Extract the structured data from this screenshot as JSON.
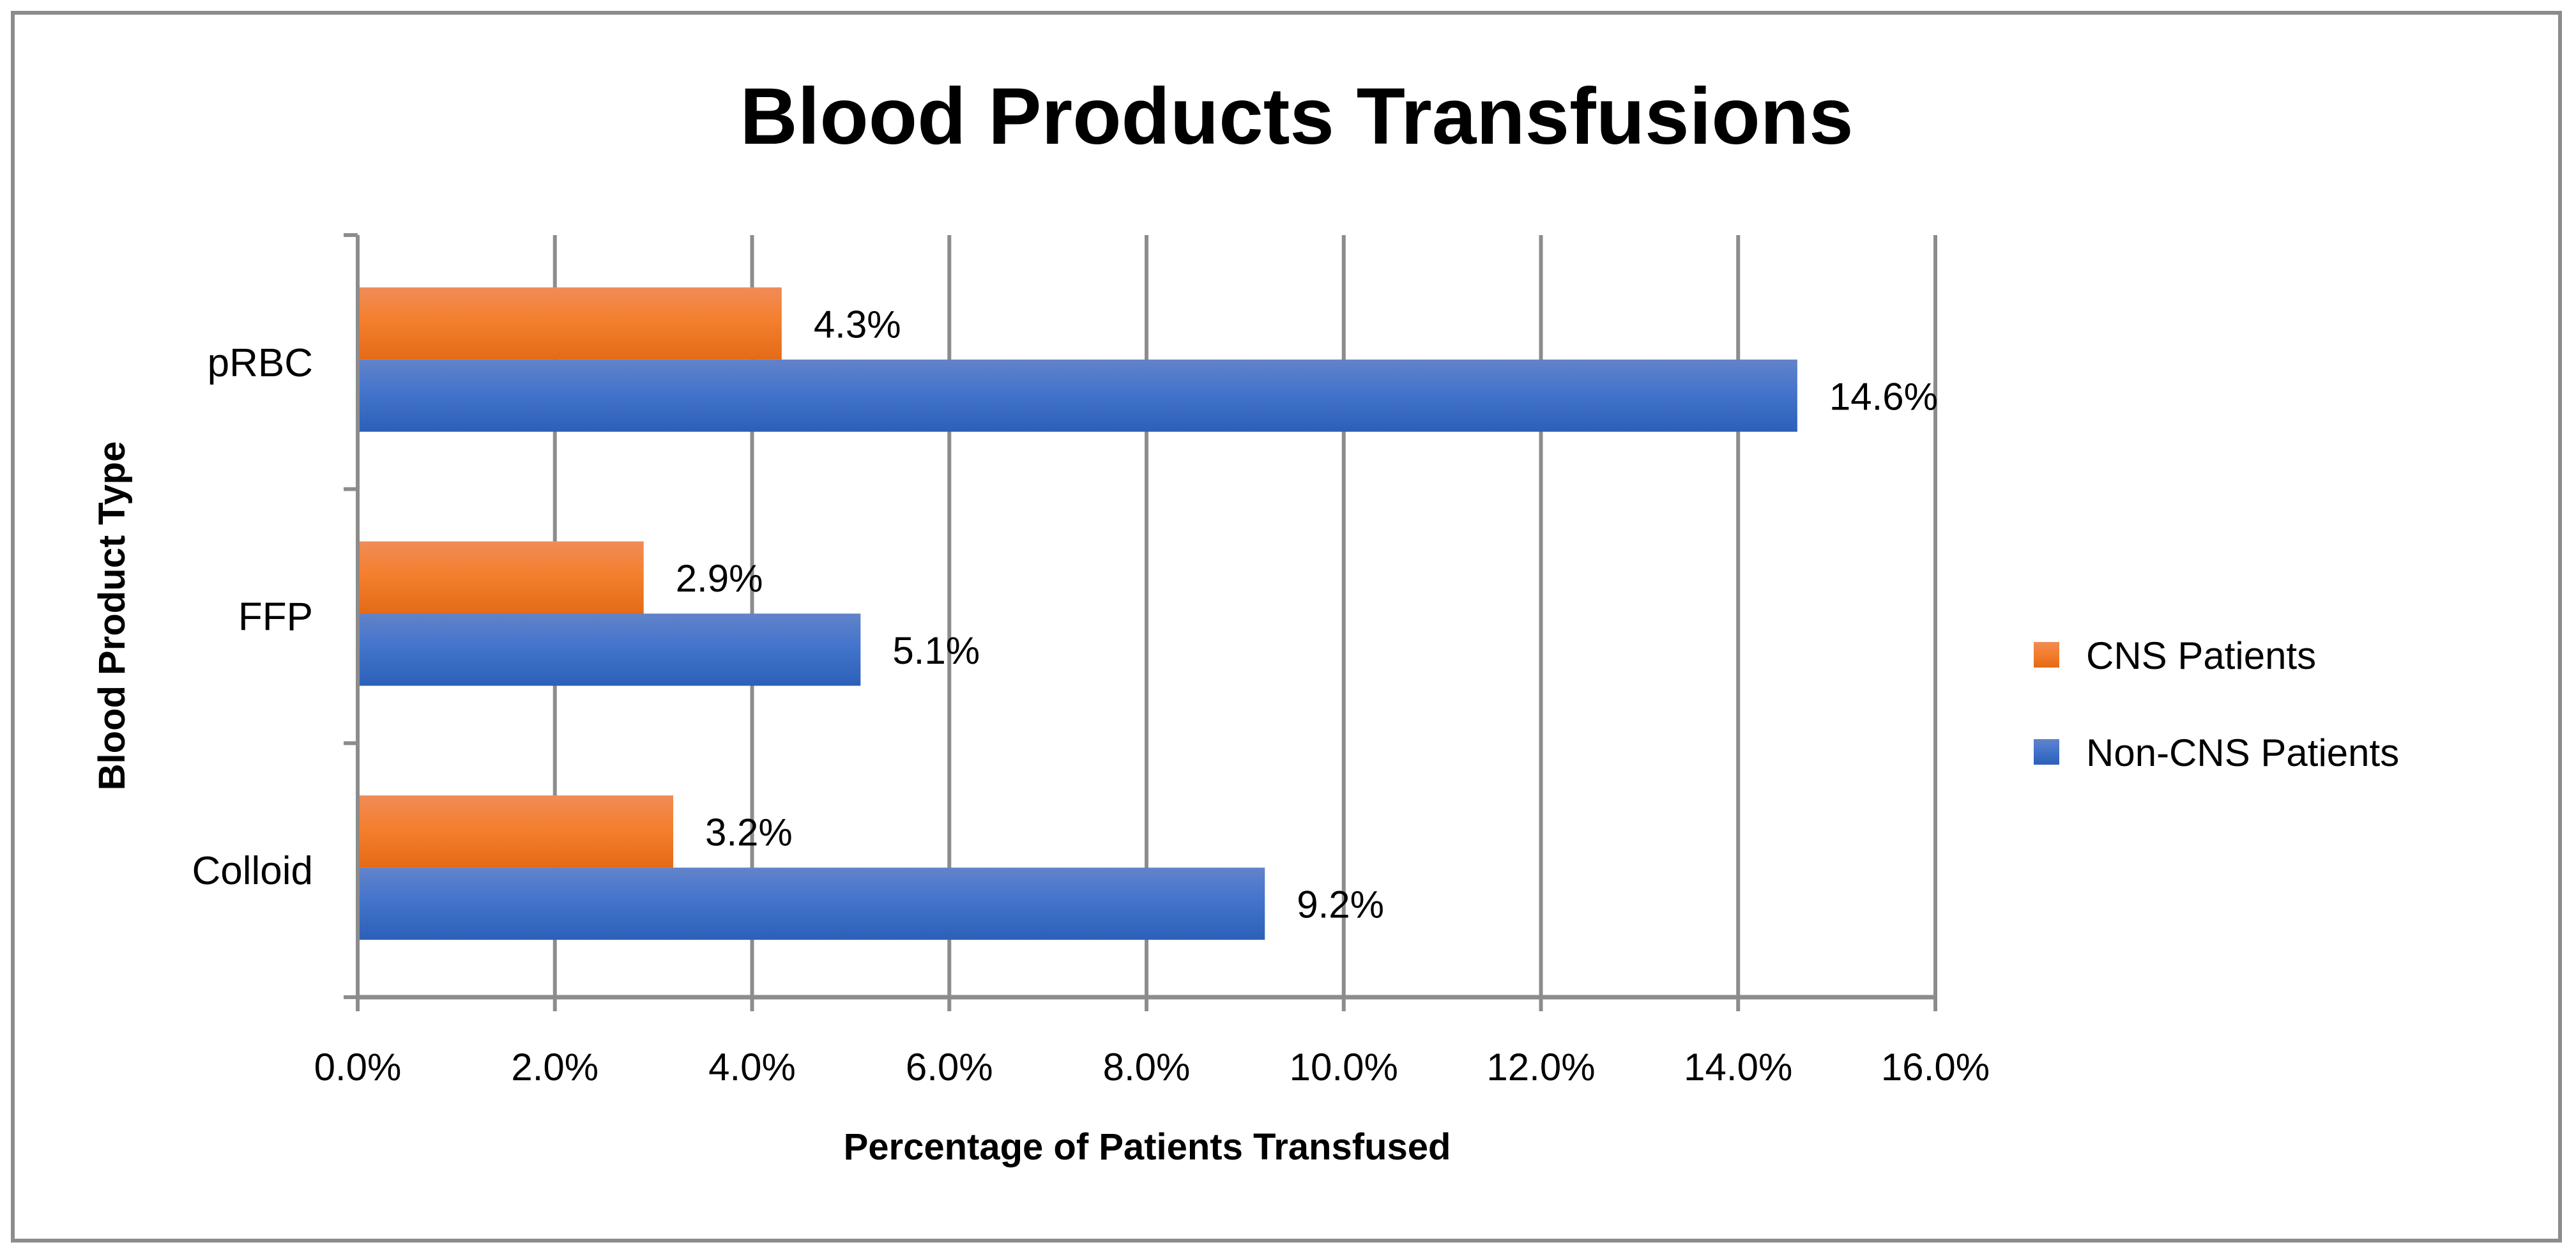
{
  "chart_data": {
    "type": "bar",
    "orientation": "horizontal",
    "title": "Blood Products Transfusions",
    "xlabel": "Percentage of Patients Transfused",
    "ylabel": "Blood Product Type",
    "categories": [
      "pRBC",
      "FFP",
      "Colloid"
    ],
    "series": [
      {
        "name": "CNS Patients",
        "values": [
          4.3,
          2.9,
          3.2
        ],
        "labels": [
          "4.3%",
          "2.9%",
          "3.2%"
        ],
        "color": "#ED7D31"
      },
      {
        "name": "Non-CNS Patients",
        "values": [
          14.6,
          5.1,
          9.2
        ],
        "labels": [
          "14.6%",
          "5.1%",
          "9.2%"
        ],
        "color": "#4472C4"
      }
    ],
    "xlim": [
      0,
      16
    ],
    "xticks": [
      "0.0%",
      "2.0%",
      "4.0%",
      "6.0%",
      "8.0%",
      "10.0%",
      "12.0%",
      "14.0%",
      "16.0%"
    ],
    "grid": true,
    "legend": "right"
  }
}
